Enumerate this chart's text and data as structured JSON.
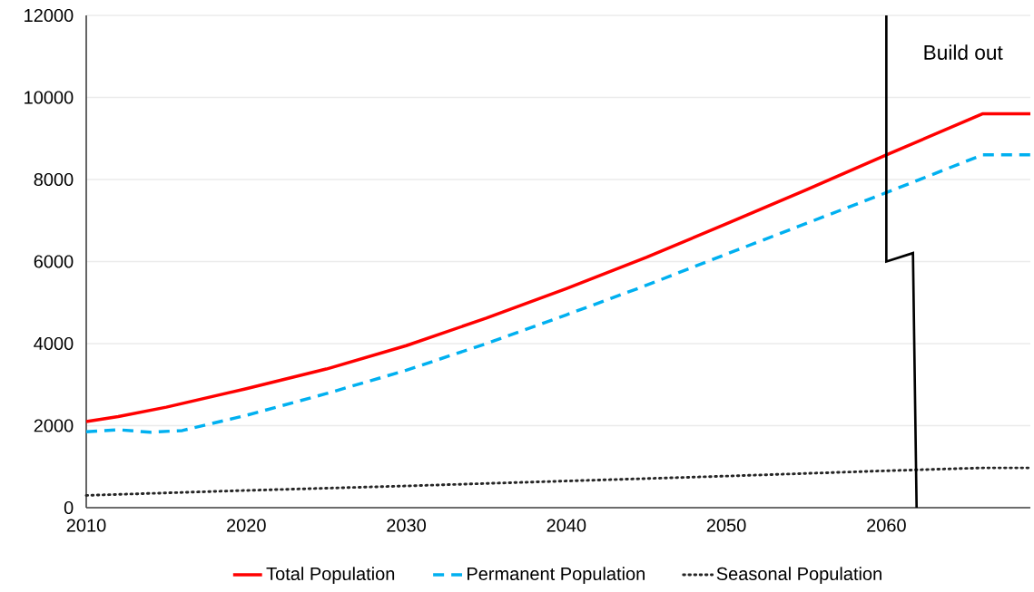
{
  "chart_data": {
    "type": "line",
    "x": [
      2010,
      2012,
      2015,
      2020,
      2025,
      2030,
      2035,
      2040,
      2045,
      2050,
      2055,
      2060,
      2066,
      2069
    ],
    "series": [
      {
        "name": "Total Population",
        "color": "#ff0000",
        "line_style": "solid",
        "values": [
          2100,
          2220,
          2450,
          2900,
          3380,
          3950,
          4620,
          5340,
          6100,
          6920,
          7750,
          8600,
          9600,
          9600
        ]
      },
      {
        "name": "Permanent Population",
        "color": "#00b0f0",
        "line_style": "dashed",
        "x": [
          2010,
          2012,
          2014,
          2016,
          2020,
          2025,
          2030,
          2035,
          2040,
          2045,
          2050,
          2055,
          2060,
          2066,
          2069
        ],
        "values": [
          1850,
          1900,
          1840,
          1880,
          2250,
          2780,
          3350,
          4000,
          4700,
          5420,
          6180,
          6930,
          7680,
          8600,
          8600
        ]
      },
      {
        "name": "Seasonal Population",
        "color": "#262626",
        "line_style": "dotted",
        "x": [
          2010,
          2020,
          2030,
          2040,
          2050,
          2060,
          2066,
          2069
        ],
        "values": [
          300,
          420,
          530,
          650,
          770,
          900,
          970,
          970
        ]
      }
    ],
    "xlim": [
      2010,
      2069
    ],
    "xticks": [
      2010,
      2020,
      2030,
      2040,
      2050,
      2060
    ],
    "ylim": [
      0,
      12000
    ],
    "yticks": [
      0,
      2000,
      4000,
      6000,
      8000,
      10000,
      12000
    ],
    "ref_lines": [
      {
        "axis": "x",
        "value": 2060,
        "label": "Build out",
        "color": "#000000"
      }
    ],
    "grid": "y",
    "legend": "bottom",
    "marker": "none"
  }
}
